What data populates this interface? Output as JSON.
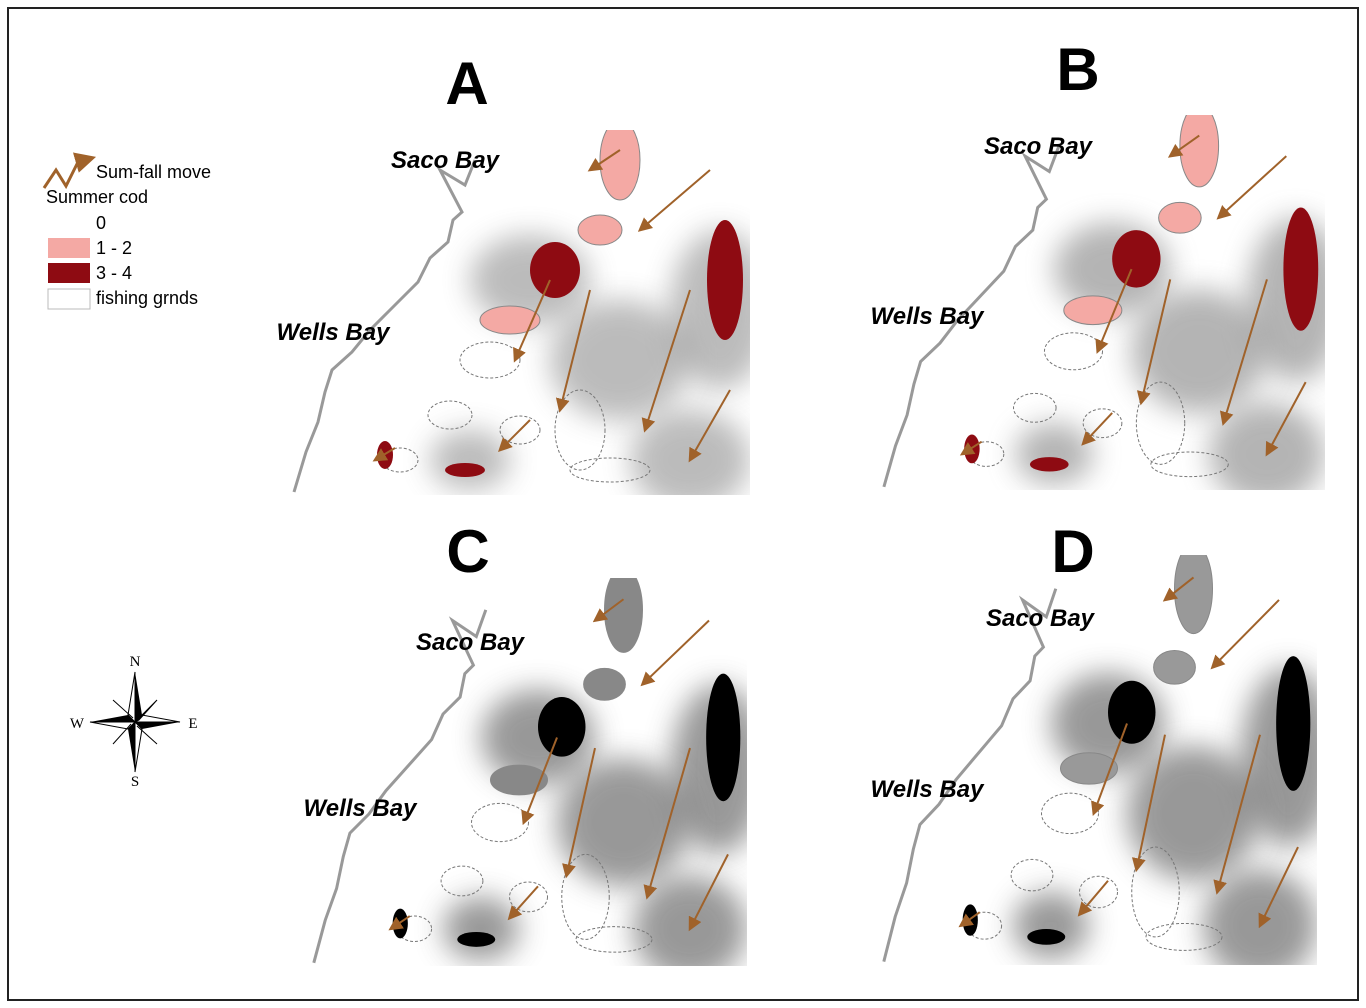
{
  "legend": {
    "move_label": "Sum-fall  move",
    "title": "Summer cod",
    "items": [
      {
        "label": "0"
      },
      {
        "label": "1 - 2"
      },
      {
        "label": "3 - 4"
      },
      {
        "label": "fishing grnds"
      }
    ]
  },
  "compass": {
    "n": "N",
    "s": "S",
    "w": "W",
    "e": "E"
  },
  "panels": [
    {
      "label": "A",
      "saco": "Saco Bay",
      "wells": "Wells Bay"
    },
    {
      "label": "B",
      "saco": "Saco Bay",
      "wells": "Wells Bay"
    },
    {
      "label": "C",
      "saco": "Saco Bay",
      "wells": "Wells Bay"
    },
    {
      "label": "D",
      "saco": "Saco Bay",
      "wells": "Wells Bay"
    }
  ]
}
